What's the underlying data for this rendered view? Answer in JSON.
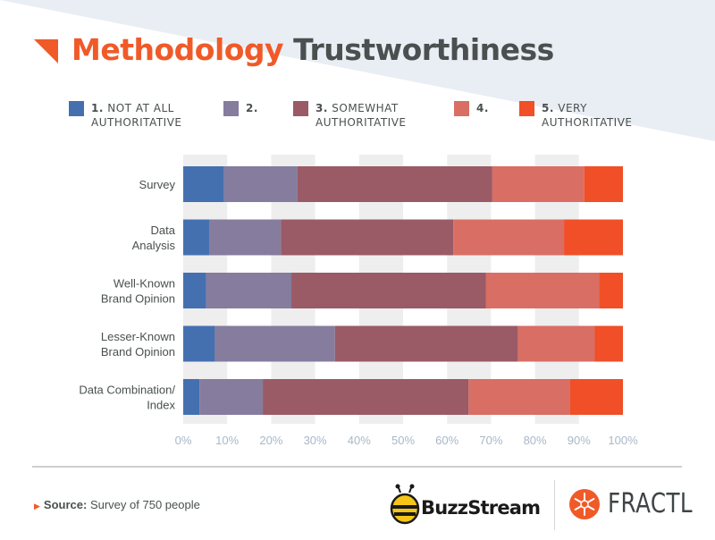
{
  "header": {
    "title_part1": "Methodology",
    "title_part2": "Trustworthiness"
  },
  "legend": [
    {
      "num": "1.",
      "label": "NOT AT ALL\nAUTHORITATIVE",
      "color": "#4470b0"
    },
    {
      "num": "2.",
      "label": "",
      "color": "#857c9e"
    },
    {
      "num": "3.",
      "label": "SOMEWHAT\nAUTHORITATIVE",
      "color": "#9a5a66"
    },
    {
      "num": "4.",
      "label": "",
      "color": "#d96e64"
    },
    {
      "num": "5.",
      "label": "VERY\nAUTHORITATIVE",
      "color": "#f04f27"
    }
  ],
  "chart_data": {
    "type": "bar",
    "orientation": "horizontal",
    "stacked": true,
    "categories": [
      "Survey",
      "Data\nAnalysis",
      "Well-Known\nBrand Opinion",
      "Lesser-Known\nBrand Opinion",
      "Data Combination/\nIndex"
    ],
    "series": [
      {
        "name": "1. NOT AT ALL AUTHORITATIVE",
        "values": [
          9.3,
          5.9,
          5.2,
          7.2,
          3.7
        ]
      },
      {
        "name": "2.",
        "values": [
          16.7,
          16.3,
          19.4,
          27.3,
          14.4
        ]
      },
      {
        "name": "3. SOMEWHAT AUTHORITATIVE",
        "values": [
          44.3,
          39.2,
          44.2,
          41.6,
          46.8
        ]
      },
      {
        "name": "4.",
        "values": [
          20.9,
          25.2,
          25.8,
          17.5,
          23.1
        ]
      },
      {
        "name": "5. VERY AUTHORITATIVE",
        "values": [
          8.8,
          13.4,
          5.4,
          6.4,
          12.0
        ]
      }
    ],
    "xlim": [
      0,
      100
    ],
    "x_ticks": [
      "0%",
      "10%",
      "20%",
      "30%",
      "40%",
      "50%",
      "60%",
      "70%",
      "80%",
      "90%",
      "100%"
    ],
    "grid": "alternating vertical bands",
    "legend_position": "top"
  },
  "footer": {
    "source_label": "Source:",
    "source_text": "Survey of 750 people",
    "brand1": "BuzzStream",
    "brand2": "FRACTL"
  }
}
